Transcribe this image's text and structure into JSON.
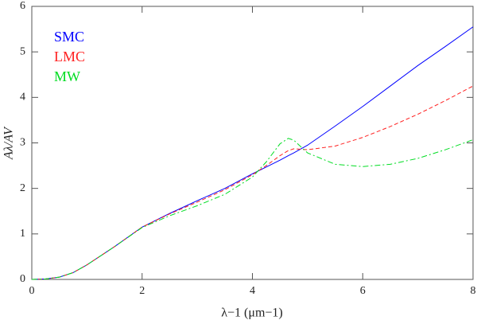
{
  "chart_data": {
    "type": "line",
    "xlabel": "λ−1 (μm−1)",
    "ylabel": "Aλ/AV",
    "x": [
      0,
      0.25,
      0.5,
      0.75,
      1,
      1.5,
      2,
      2.5,
      3,
      3.5,
      4,
      4.25,
      4.5,
      4.65,
      4.75,
      5,
      5.5,
      6,
      6.5,
      7,
      7.5,
      8
    ],
    "series": [
      {
        "name": "SMC",
        "color": "#0000ff",
        "linestyle": "solid",
        "values": [
          0,
          0.01,
          0.05,
          0.15,
          0.32,
          0.72,
          1.15,
          1.45,
          1.73,
          2.0,
          2.32,
          2.47,
          2.62,
          2.72,
          2.78,
          2.95,
          3.37,
          3.8,
          4.25,
          4.7,
          5.12,
          5.55
        ]
      },
      {
        "name": "LMC",
        "color": "#ff2020",
        "linestyle": "dashed",
        "values": [
          0,
          0.01,
          0.05,
          0.15,
          0.32,
          0.72,
          1.15,
          1.44,
          1.7,
          1.97,
          2.3,
          2.5,
          2.72,
          2.83,
          2.87,
          2.85,
          2.93,
          3.12,
          3.36,
          3.63,
          3.93,
          4.25
        ]
      },
      {
        "name": "MW",
        "color": "#00dd22",
        "linestyle": "dashdot",
        "values": [
          0,
          0.01,
          0.05,
          0.15,
          0.32,
          0.72,
          1.14,
          1.4,
          1.62,
          1.87,
          2.25,
          2.58,
          2.98,
          3.1,
          3.06,
          2.78,
          2.53,
          2.48,
          2.53,
          2.66,
          2.85,
          3.07
        ]
      }
    ],
    "xlim": [
      0,
      8
    ],
    "xticks": [
      0,
      2,
      4,
      6,
      8
    ],
    "ylim": [
      0,
      6
    ],
    "yticks": [
      0,
      1,
      2,
      3,
      4,
      5,
      6
    ],
    "legend": "top-left"
  }
}
